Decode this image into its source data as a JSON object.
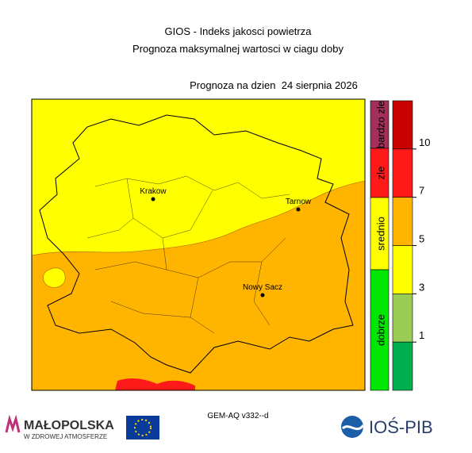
{
  "header": {
    "title": "GIOS - Indeks jakosci powietrza",
    "subtitle": "Prognoza maksymalnej wartosci w ciagu doby",
    "date_line": "Prognoza na dzien  24 sierpnia 2026"
  },
  "map": {
    "cities": [
      "Krakow",
      "Tarnow",
      "Nowy Sacz"
    ]
  },
  "legend": {
    "categories": [
      {
        "label": "bardzo zle",
        "color": "#a3305a"
      },
      {
        "label": "zle",
        "color": "#ff1a1a"
      },
      {
        "label": "srednio",
        "color": "#ffff00"
      },
      {
        "label": "dobrze",
        "color": "#00e600"
      }
    ],
    "scale": {
      "colors": [
        "#c80000",
        "#ff1a1a",
        "#ffb400",
        "#ffff00",
        "#99cc55",
        "#00b050"
      ],
      "ticks": [
        10,
        7,
        5,
        3,
        1
      ]
    }
  },
  "footer": {
    "model": "GEM-AQ v332--d",
    "logo_left": "MAŁOPOLSKA",
    "logo_left_sub": "W ZDROWEJ ATMOSFERZE",
    "logo_right": "IOŚ-PIB"
  }
}
